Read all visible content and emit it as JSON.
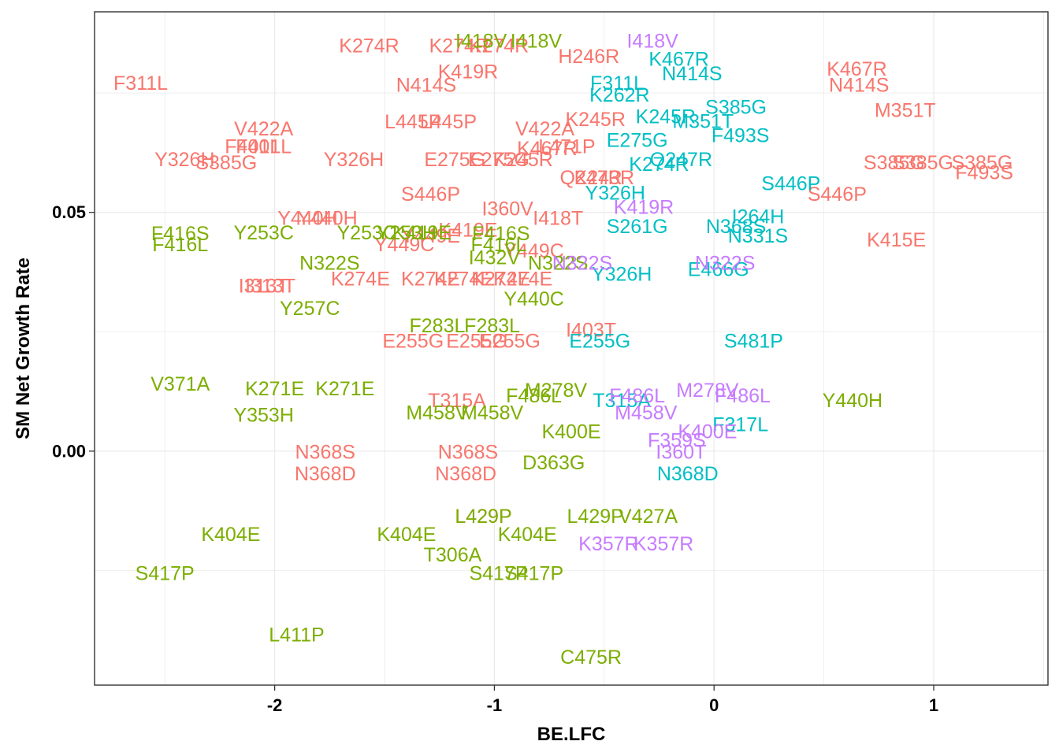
{
  "chart_data": {
    "type": "scatter",
    "title": "",
    "xlabel": "BE.LFC",
    "ylabel": "SM Net Growth Rate",
    "xlim": [
      -2.82,
      1.52
    ],
    "ylim": [
      -0.049,
      0.092
    ],
    "x_ticks": [
      -2,
      -1,
      0,
      1
    ],
    "x_tick_labels": [
      "-2",
      "-1",
      "0",
      "1"
    ],
    "y_ticks": [
      0.0,
      0.05
    ],
    "y_tick_labels": [
      "0.00",
      "0.05"
    ],
    "grid": true,
    "legend": "none",
    "colors": {
      "red": "#F8766D",
      "green": "#7CAE00",
      "teal": "#00BFC4",
      "purple": "#C77CFF"
    },
    "series": [
      {
        "color": "red",
        "points": [
          {
            "label": "K274R",
            "x": -1.57,
            "y": 0.0848
          },
          {
            "label": "K274R",
            "x": -1.16,
            "y": 0.0848
          },
          {
            "label": "K274R",
            "x": -0.98,
            "y": 0.0848
          },
          {
            "label": "F311L",
            "x": -2.61,
            "y": 0.077
          },
          {
            "label": "K419R",
            "x": -1.12,
            "y": 0.0794
          },
          {
            "label": "N414S",
            "x": -1.31,
            "y": 0.0766
          },
          {
            "label": "H246R",
            "x": -0.57,
            "y": 0.0826
          },
          {
            "label": "K467R",
            "x": 0.65,
            "y": 0.08
          },
          {
            "label": "N414S",
            "x": 0.66,
            "y": 0.0766
          },
          {
            "label": "M351T",
            "x": 0.87,
            "y": 0.0713
          },
          {
            "label": "V422A",
            "x": -2.05,
            "y": 0.0674
          },
          {
            "label": "L445P",
            "x": -1.37,
            "y": 0.0689
          },
          {
            "label": "L445P",
            "x": -1.21,
            "y": 0.0689
          },
          {
            "label": "V422A",
            "x": -0.77,
            "y": 0.0674
          },
          {
            "label": "K245R",
            "x": -0.54,
            "y": 0.0694
          },
          {
            "label": "F401L",
            "x": -2.1,
            "y": 0.0637
          },
          {
            "label": "F401L",
            "x": -2.05,
            "y": 0.0637
          },
          {
            "label": "Y326H",
            "x": -2.41,
            "y": 0.061
          },
          {
            "label": "S385G",
            "x": -2.22,
            "y": 0.0603
          },
          {
            "label": "Y326H",
            "x": -1.64,
            "y": 0.061
          },
          {
            "label": "E275G",
            "x": -1.18,
            "y": 0.061
          },
          {
            "label": "E275G",
            "x": -0.98,
            "y": 0.061
          },
          {
            "label": "K245R",
            "x": -0.87,
            "y": 0.061
          },
          {
            "label": "K467R",
            "x": -0.76,
            "y": 0.0633
          },
          {
            "label": "L471P",
            "x": -0.67,
            "y": 0.0637
          },
          {
            "label": "Q247R",
            "x": -0.56,
            "y": 0.0572
          },
          {
            "label": "K243R",
            "x": -0.5,
            "y": 0.0572
          },
          {
            "label": "S385G",
            "x": 0.82,
            "y": 0.0603
          },
          {
            "label": "S385G",
            "x": 0.95,
            "y": 0.0603
          },
          {
            "label": "S385G",
            "x": 1.22,
            "y": 0.0603
          },
          {
            "label": "F493S",
            "x": 1.23,
            "y": 0.0583
          },
          {
            "label": "S446P",
            "x": -1.29,
            "y": 0.0537
          },
          {
            "label": "S446P",
            "x": 0.56,
            "y": 0.0537
          },
          {
            "label": "Y440H",
            "x": -1.85,
            "y": 0.0487
          },
          {
            "label": "Y440H",
            "x": -1.76,
            "y": 0.0487
          },
          {
            "label": "I418T",
            "x": -0.71,
            "y": 0.0487
          },
          {
            "label": "I360V",
            "x": -0.94,
            "y": 0.0507
          },
          {
            "label": "K419E",
            "x": -1.12,
            "y": 0.0462
          },
          {
            "label": "Y449C",
            "x": -1.41,
            "y": 0.0432
          },
          {
            "label": "Y449E",
            "x": -1.29,
            "y": 0.045
          },
          {
            "label": "Y449C",
            "x": -0.82,
            "y": 0.0419
          },
          {
            "label": "K415E",
            "x": 0.83,
            "y": 0.0442
          },
          {
            "label": "I313T",
            "x": -2.05,
            "y": 0.0345
          },
          {
            "label": "I313T",
            "x": -2.02,
            "y": 0.0345
          },
          {
            "label": "K274E",
            "x": -1.61,
            "y": 0.036
          },
          {
            "label": "K274E",
            "x": -1.29,
            "y": 0.036
          },
          {
            "label": "K274E",
            "x": -1.14,
            "y": 0.036
          },
          {
            "label": "K274E",
            "x": -0.97,
            "y": 0.036
          },
          {
            "label": "K274E",
            "x": -0.87,
            "y": 0.036
          },
          {
            "label": "I403T",
            "x": -0.56,
            "y": 0.0253
          },
          {
            "label": "E255G",
            "x": -1.37,
            "y": 0.023
          },
          {
            "label": "E255G",
            "x": -1.08,
            "y": 0.023
          },
          {
            "label": "E255G",
            "x": -0.93,
            "y": 0.023
          },
          {
            "label": "T315A",
            "x": -1.17,
            "y": 0.0105
          },
          {
            "label": "N368S",
            "x": -1.77,
            "y": -0.0003
          },
          {
            "label": "N368D",
            "x": -1.77,
            "y": -0.0048
          },
          {
            "label": "N368S",
            "x": -1.12,
            "y": -0.0003
          },
          {
            "label": "N368D",
            "x": -1.13,
            "y": -0.0048
          },
          {
            "label": "L429P",
            "x": -1.05,
            "y": -0.0137
          }
        ]
      },
      {
        "color": "green",
        "points": [
          {
            "label": "I418V",
            "x": -1.06,
            "y": 0.0858
          },
          {
            "label": "I418V",
            "x": -0.81,
            "y": 0.0858
          },
          {
            "label": "F416S",
            "x": -2.43,
            "y": 0.0455
          },
          {
            "label": "F416L",
            "x": -2.43,
            "y": 0.0432
          },
          {
            "label": "Y253C",
            "x": -2.05,
            "y": 0.0457
          },
          {
            "label": "Y253C",
            "x": -1.58,
            "y": 0.0457
          },
          {
            "label": "Y253H",
            "x": -1.4,
            "y": 0.0457
          },
          {
            "label": "K419E",
            "x": -1.33,
            "y": 0.0457
          },
          {
            "label": "F416S",
            "x": -0.97,
            "y": 0.0455
          },
          {
            "label": "F416L",
            "x": -0.98,
            "y": 0.0432
          },
          {
            "label": "I432V",
            "x": -1.0,
            "y": 0.0405
          },
          {
            "label": "N322S",
            "x": -1.75,
            "y": 0.0393
          },
          {
            "label": "N322S",
            "x": -0.71,
            "y": 0.0393
          },
          {
            "label": "Y440C",
            "x": -0.82,
            "y": 0.0318
          },
          {
            "label": "Y257C",
            "x": -1.84,
            "y": 0.0298
          },
          {
            "label": "F283L",
            "x": -1.26,
            "y": 0.0262
          },
          {
            "label": "F283L",
            "x": -1.01,
            "y": 0.0262
          },
          {
            "label": "V371A",
            "x": -2.43,
            "y": 0.014
          },
          {
            "label": "K271E",
            "x": -2.0,
            "y": 0.013
          },
          {
            "label": "K271E",
            "x": -1.68,
            "y": 0.013
          },
          {
            "label": "Y353H",
            "x": -2.05,
            "y": 0.0075
          },
          {
            "label": "F486L",
            "x": -0.82,
            "y": 0.0115
          },
          {
            "label": "M278V",
            "x": -0.72,
            "y": 0.0127
          },
          {
            "label": "M458V",
            "x": -1.26,
            "y": 0.008
          },
          {
            "label": "M458V",
            "x": -1.01,
            "y": 0.008
          },
          {
            "label": "K400E",
            "x": -0.65,
            "y": 0.004
          },
          {
            "label": "Y440H",
            "x": 0.63,
            "y": 0.0105
          },
          {
            "label": "D363G",
            "x": -0.73,
            "y": -0.0025
          },
          {
            "label": "L429P",
            "x": -1.05,
            "y": -0.0137
          },
          {
            "label": "L429P",
            "x": -0.54,
            "y": -0.0137
          },
          {
            "label": "V427A",
            "x": -0.3,
            "y": -0.0137
          },
          {
            "label": "K404E",
            "x": -2.2,
            "y": -0.0175
          },
          {
            "label": "K404E",
            "x": -1.4,
            "y": -0.0175
          },
          {
            "label": "K404E",
            "x": -0.85,
            "y": -0.0175
          },
          {
            "label": "T306A",
            "x": -1.19,
            "y": -0.0218
          },
          {
            "label": "S417P",
            "x": -2.5,
            "y": -0.0257
          },
          {
            "label": "S417P",
            "x": -0.98,
            "y": -0.0257
          },
          {
            "label": "S417P",
            "x": -0.82,
            "y": -0.0257
          },
          {
            "label": "L411P",
            "x": -1.9,
            "y": -0.0385
          },
          {
            "label": "C475R",
            "x": -0.56,
            "y": -0.0432
          }
        ]
      },
      {
        "color": "teal",
        "points": [
          {
            "label": "K467R",
            "x": -0.16,
            "y": 0.082
          },
          {
            "label": "F311L",
            "x": -0.44,
            "y": 0.077
          },
          {
            "label": "K262R",
            "x": -0.43,
            "y": 0.0745
          },
          {
            "label": "N414S",
            "x": -0.1,
            "y": 0.079
          },
          {
            "label": "K245R",
            "x": -0.22,
            "y": 0.07
          },
          {
            "label": "M351T",
            "x": -0.05,
            "y": 0.069
          },
          {
            "label": "S385G",
            "x": 0.1,
            "y": 0.072
          },
          {
            "label": "F493S",
            "x": 0.12,
            "y": 0.066
          },
          {
            "label": "E275G",
            "x": -0.35,
            "y": 0.065
          },
          {
            "label": "Q247R",
            "x": -0.15,
            "y": 0.061
          },
          {
            "label": "Y326H",
            "x": -0.45,
            "y": 0.054
          },
          {
            "label": "K274R",
            "x": -0.25,
            "y": 0.06
          },
          {
            "label": "S446P",
            "x": 0.35,
            "y": 0.056
          },
          {
            "label": "N368S",
            "x": 0.1,
            "y": 0.047
          },
          {
            "label": "I264H",
            "x": 0.2,
            "y": 0.049
          },
          {
            "label": "N331S",
            "x": 0.2,
            "y": 0.045
          },
          {
            "label": "S261G",
            "x": -0.35,
            "y": 0.047
          },
          {
            "label": "E466G",
            "x": 0.02,
            "y": 0.038
          },
          {
            "label": "Y326H",
            "x": -0.42,
            "y": 0.037
          },
          {
            "label": "E255G",
            "x": -0.52,
            "y": 0.023
          },
          {
            "label": "S481P",
            "x": 0.18,
            "y": 0.023
          },
          {
            "label": "T315A",
            "x": -0.42,
            "y": 0.0105
          },
          {
            "label": "F317L",
            "x": 0.12,
            "y": 0.0055
          },
          {
            "label": "N368D",
            "x": -0.12,
            "y": -0.0048
          }
        ]
      },
      {
        "color": "purple",
        "points": [
          {
            "label": "I418V",
            "x": -0.28,
            "y": 0.0858
          },
          {
            "label": "K419R",
            "x": -0.32,
            "y": 0.051
          },
          {
            "label": "N322S",
            "x": 0.05,
            "y": 0.0393
          },
          {
            "label": "N322S",
            "x": -0.6,
            "y": 0.0393
          },
          {
            "label": "F486L",
            "x": -0.35,
            "y": 0.0115
          },
          {
            "label": "M278V",
            "x": -0.03,
            "y": 0.0127
          },
          {
            "label": "F486L",
            "x": 0.13,
            "y": 0.0115
          },
          {
            "label": "M458V",
            "x": -0.31,
            "y": 0.008
          },
          {
            "label": "F359S",
            "x": -0.17,
            "y": 0.0022
          },
          {
            "label": "K400E",
            "x": -0.03,
            "y": 0.004
          },
          {
            "label": "I360T",
            "x": -0.15,
            "y": -0.0003
          },
          {
            "label": "K357R",
            "x": -0.48,
            "y": -0.0195
          },
          {
            "label": "K357R",
            "x": -0.23,
            "y": -0.0195
          }
        ]
      }
    ]
  }
}
